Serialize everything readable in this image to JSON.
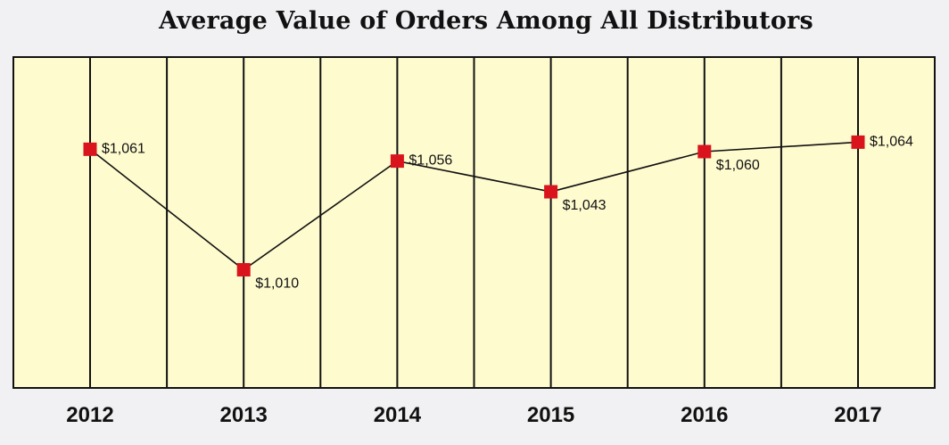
{
  "chart_data": {
    "type": "line",
    "title": "Average Value of Orders Among All Distributors",
    "categories": [
      "2012",
      "2013",
      "2014",
      "2015",
      "2016",
      "2017"
    ],
    "series": [
      {
        "values": [
          1061,
          1010,
          1056,
          1043,
          1060,
          1064
        ],
        "labels": [
          "$1,061",
          "$1,010",
          "$1,056",
          "$1,043",
          "$1,060",
          "$1,064"
        ]
      }
    ],
    "ylim": [
      960,
      1100
    ],
    "grid": true,
    "colors": {
      "plot_background": "#fefbcf",
      "marker": "#d9141c",
      "line": "#111111",
      "page_background": "#f1f1f3"
    }
  }
}
